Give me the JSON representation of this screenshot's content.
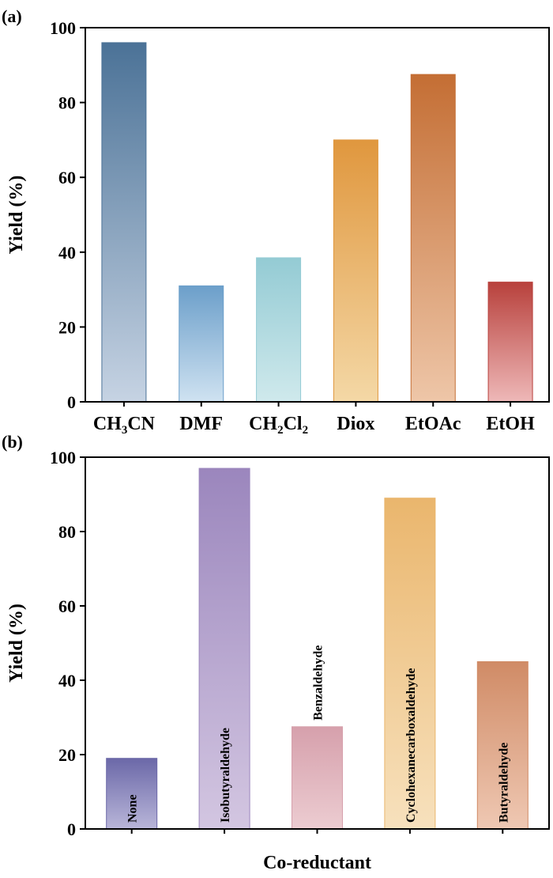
{
  "chart_data": [
    {
      "type": "bar",
      "panel_label": "(a)",
      "title": "",
      "xlabel": "",
      "ylabel": "Yield (%)",
      "ylim": [
        0,
        100
      ],
      "yticks": [
        0,
        20,
        40,
        60,
        80,
        100
      ],
      "categories": [
        {
          "base": "CH",
          "sub1": "3",
          "mid": "CN",
          "sub2": "",
          "tail": ""
        },
        {
          "base": "DMF",
          "sub1": "",
          "mid": "",
          "sub2": "",
          "tail": ""
        },
        {
          "base": "CH",
          "sub1": "2",
          "mid": "Cl",
          "sub2": "2",
          "tail": ""
        },
        {
          "base": "Diox",
          "sub1": "",
          "mid": "",
          "sub2": "",
          "tail": ""
        },
        {
          "base": "EtOAc",
          "sub1": "",
          "mid": "",
          "sub2": "",
          "tail": ""
        },
        {
          "base": "EtOH",
          "sub1": "",
          "mid": "",
          "sub2": "",
          "tail": ""
        }
      ],
      "values": [
        96,
        31,
        38.5,
        70,
        87.5,
        32
      ],
      "colors": [
        [
          "#4b7297",
          "#c6d3e3"
        ],
        [
          "#6c9fca",
          "#cfe2f1"
        ],
        [
          "#94cbd4",
          "#cfe9ec"
        ],
        [
          "#e0973e",
          "#f4d8a6"
        ],
        [
          "#c46e34",
          "#eec6a8"
        ],
        [
          "#b8413c",
          "#eeb8b8"
        ]
      ],
      "legend": "none",
      "grid": false
    },
    {
      "type": "bar",
      "panel_label": "(b)",
      "title": "",
      "xlabel": "Co-reductant",
      "ylabel": "Yield (%)",
      "ylim": [
        0,
        100
      ],
      "yticks": [
        0,
        20,
        40,
        60,
        80,
        100
      ],
      "categories": [
        "None",
        "Isobutyraldehyde",
        "Benzaldehyde",
        "Cyclohexanecarboxaldehyde",
        "Butyraldehyde"
      ],
      "label_inside_bar": [
        true,
        true,
        false,
        true,
        true
      ],
      "values": [
        19,
        97,
        27.5,
        89,
        45
      ],
      "colors": [
        [
          "#6b68a8",
          "#b9b6d9"
        ],
        [
          "#9b86bd",
          "#d3c6e1"
        ],
        [
          "#d6a0ac",
          "#ecccd1"
        ],
        [
          "#eab66d",
          "#f7e1bd"
        ],
        [
          "#d08b66",
          "#efc8b3"
        ]
      ],
      "legend": "none",
      "grid": false
    }
  ]
}
